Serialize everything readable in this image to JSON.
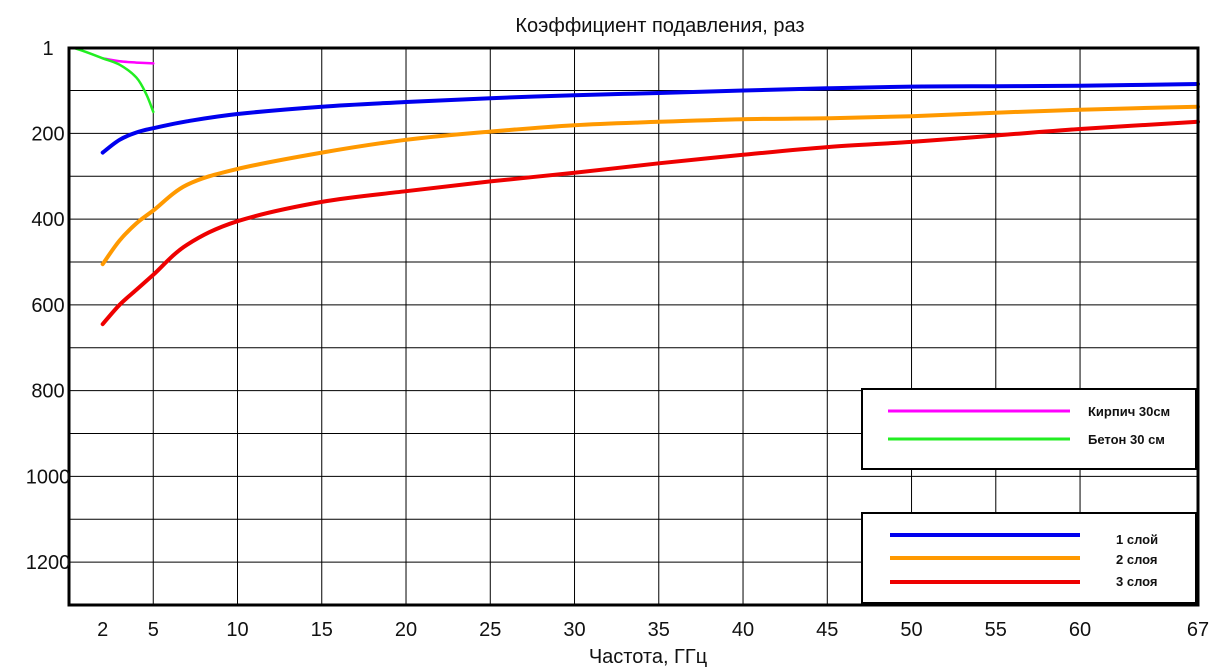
{
  "chart_data": {
    "type": "line",
    "title": "Коэффициент подавления, раз",
    "xlabel": "Частота,  ГГц",
    "ylabel": "",
    "x_ticks": [
      2,
      5,
      10,
      15,
      20,
      25,
      30,
      35,
      40,
      45,
      50,
      55,
      60,
      67
    ],
    "x_ticks_text": [
      "2",
      "5",
      "10",
      "15",
      "20",
      "25",
      "30",
      "35",
      "40",
      "45",
      "50",
      "55",
      "60",
      "67"
    ],
    "y_ticks_text": [
      "1",
      "200",
      "400",
      "600",
      "800",
      "1000",
      "1200"
    ],
    "y_tick_values": [
      1,
      200,
      400,
      600,
      800,
      1000,
      1200
    ],
    "xlim": [
      0,
      67
    ],
    "ylim": [
      1,
      1300
    ],
    "y_inverted": true,
    "grid": true,
    "legends": [
      {
        "position": "right-middle",
        "entries": [
          {
            "label": "Кирпич 30см",
            "color": "#ff00ff"
          },
          {
            "label": "Бетон 30 см",
            "color": "#22ee22"
          }
        ]
      },
      {
        "position": "bottom-right",
        "entries": [
          {
            "label": "1 слой",
            "color": "#0000ee"
          },
          {
            "label": "2 слоя",
            "color": "#ff9900"
          },
          {
            "label": "3 слоя",
            "color": "#ee0000"
          }
        ]
      }
    ],
    "series": [
      {
        "name": "Кирпич 30см",
        "color": "#ff00ff",
        "points": [
          [
            2,
            25
          ],
          [
            3,
            32
          ],
          [
            4,
            35
          ],
          [
            5,
            37
          ]
        ]
      },
      {
        "name": "Бетон 30 см",
        "color": "#22ee22",
        "points": [
          [
            0.3,
            1
          ],
          [
            1,
            10
          ],
          [
            2,
            25
          ],
          [
            3,
            40
          ],
          [
            4,
            70
          ],
          [
            4.6,
            110
          ],
          [
            5,
            150
          ]
        ]
      },
      {
        "name": "1 слой",
        "color": "#0000ee",
        "points": [
          [
            2,
            245
          ],
          [
            3,
            215
          ],
          [
            4,
            198
          ],
          [
            5,
            188
          ],
          [
            7,
            172
          ],
          [
            10,
            155
          ],
          [
            15,
            138
          ],
          [
            20,
            127
          ],
          [
            25,
            118
          ],
          [
            30,
            111
          ],
          [
            35,
            106
          ],
          [
            40,
            100
          ],
          [
            45,
            95
          ],
          [
            50,
            91
          ],
          [
            55,
            90
          ],
          [
            60,
            89
          ],
          [
            67,
            85
          ]
        ]
      },
      {
        "name": "2 слоя",
        "color": "#ff9900",
        "points": [
          [
            2,
            505
          ],
          [
            3,
            450
          ],
          [
            4,
            410
          ],
          [
            5,
            380
          ],
          [
            7,
            320
          ],
          [
            10,
            283
          ],
          [
            15,
            245
          ],
          [
            20,
            215
          ],
          [
            25,
            196
          ],
          [
            30,
            181
          ],
          [
            35,
            173
          ],
          [
            40,
            167
          ],
          [
            45,
            165
          ],
          [
            50,
            160
          ],
          [
            55,
            152
          ],
          [
            60,
            145
          ],
          [
            67,
            138
          ]
        ]
      },
      {
        "name": "3 слоя",
        "color": "#ee0000",
        "points": [
          [
            2,
            645
          ],
          [
            3,
            600
          ],
          [
            4,
            565
          ],
          [
            5,
            530
          ],
          [
            7,
            460
          ],
          [
            10,
            405
          ],
          [
            15,
            360
          ],
          [
            20,
            335
          ],
          [
            25,
            312
          ],
          [
            30,
            292
          ],
          [
            35,
            270
          ],
          [
            40,
            250
          ],
          [
            45,
            232
          ],
          [
            50,
            220
          ],
          [
            55,
            205
          ],
          [
            60,
            190
          ],
          [
            67,
            173
          ]
        ]
      }
    ]
  }
}
